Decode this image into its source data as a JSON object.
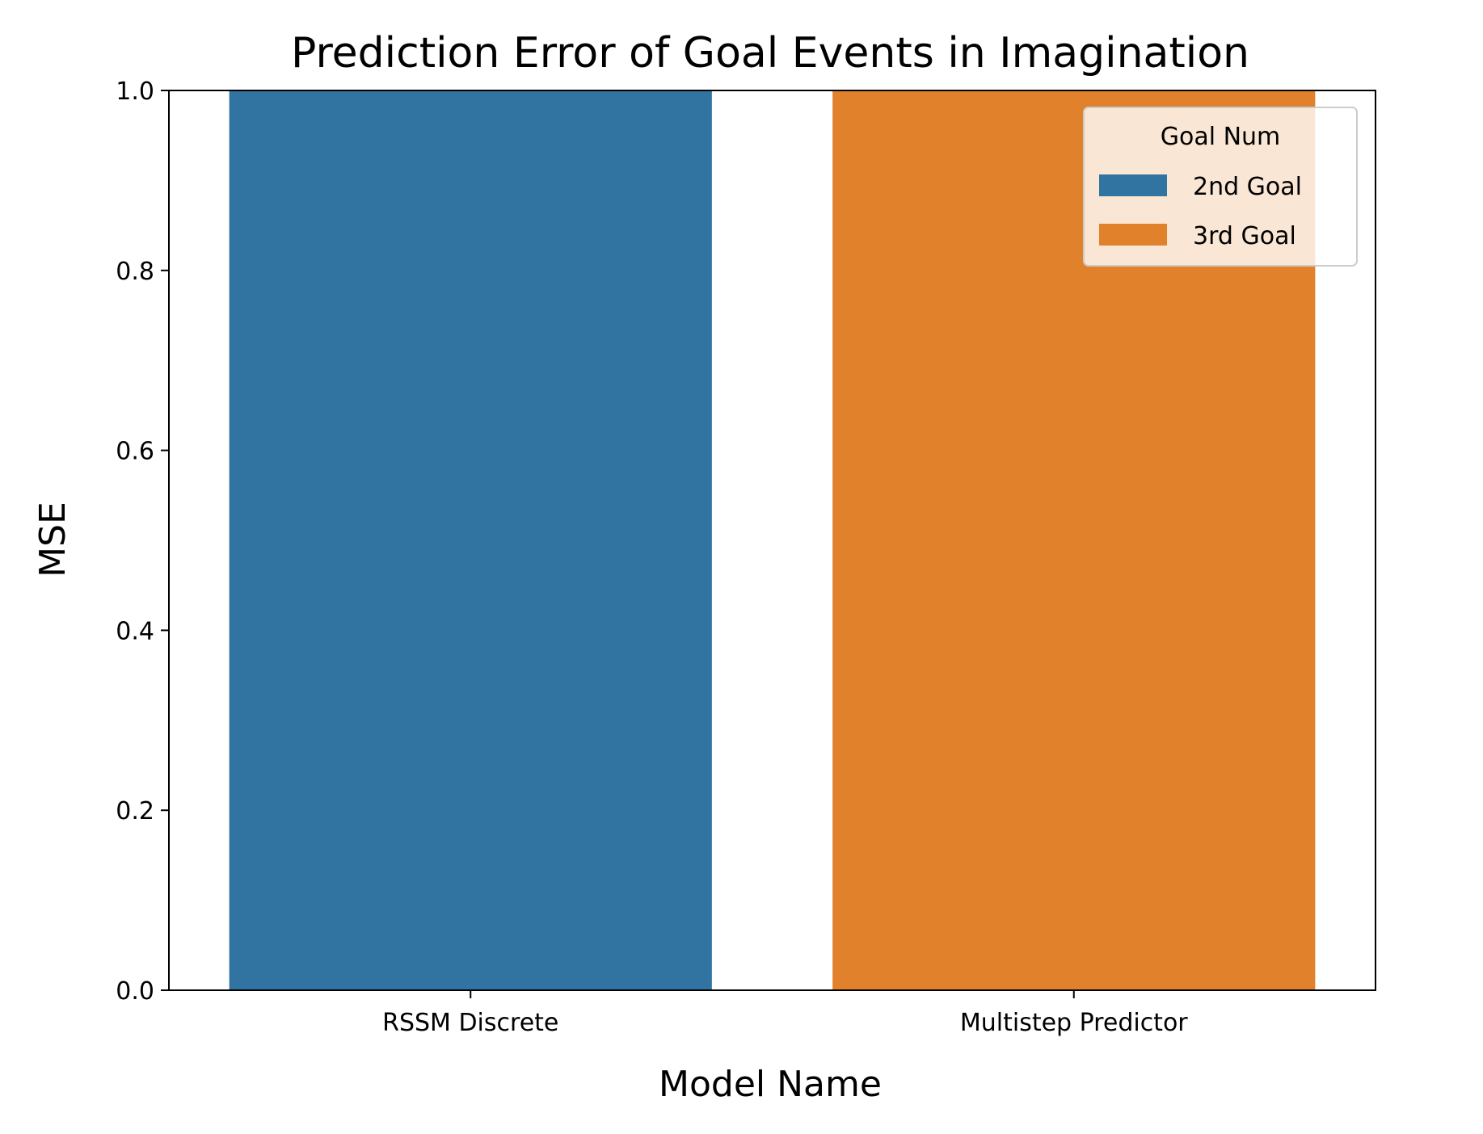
{
  "chart_data": {
    "type": "bar",
    "title": "Prediction Error of Goal Events in Imagination",
    "xlabel": "Model Name",
    "ylabel": "MSE",
    "categories": [
      "RSSM Discrete",
      "Multistep Predictor"
    ],
    "series": [
      {
        "name": "2nd Goal",
        "color": "#3274a1",
        "values": [
          1.0,
          null
        ]
      },
      {
        "name": "3rd Goal",
        "color": "#e1812c",
        "values": [
          null,
          1.0
        ]
      }
    ],
    "ylim": [
      0,
      1.0
    ],
    "yticks": [
      "0.0",
      "0.2",
      "0.4",
      "0.6",
      "0.8",
      "1.0"
    ],
    "grid": false,
    "legend": {
      "title": "Goal Num",
      "placement": "upper right",
      "entries": [
        "2nd Goal",
        "3rd Goal"
      ]
    }
  }
}
